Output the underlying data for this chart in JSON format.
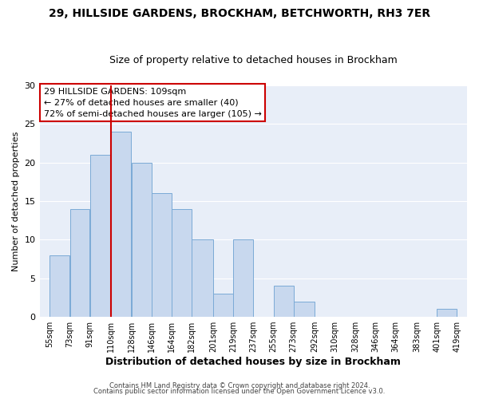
{
  "title": "29, HILLSIDE GARDENS, BROCKHAM, BETCHWORTH, RH3 7ER",
  "subtitle": "Size of property relative to detached houses in Brockham",
  "xlabel": "Distribution of detached houses by size in Brockham",
  "ylabel": "Number of detached properties",
  "bar_values": [
    8,
    14,
    21,
    24,
    20,
    16,
    14,
    10,
    3,
    10,
    0,
    4,
    2,
    0,
    0,
    0,
    1
  ],
  "bar_left_edges": [
    55,
    73,
    91,
    110,
    128,
    146,
    164,
    182,
    201,
    219,
    237,
    255,
    273,
    292,
    310,
    328,
    401
  ],
  "bar_widths": [
    18,
    18,
    19,
    18,
    18,
    18,
    18,
    19,
    18,
    18,
    18,
    18,
    19,
    18,
    18,
    18,
    18
  ],
  "tick_positions": [
    55,
    73,
    91,
    110,
    128,
    146,
    164,
    182,
    201,
    219,
    237,
    255,
    273,
    292,
    310,
    328,
    346,
    364,
    383,
    401,
    419
  ],
  "tick_labels": [
    "55sqm",
    "73sqm",
    "91sqm",
    "110sqm",
    "128sqm",
    "146sqm",
    "164sqm",
    "182sqm",
    "201sqm",
    "219sqm",
    "237sqm",
    "255sqm",
    "273sqm",
    "292sqm",
    "310sqm",
    "328sqm",
    "346sqm",
    "364sqm",
    "383sqm",
    "401sqm",
    "419sqm"
  ],
  "bar_color": "#c8d8ee",
  "bar_edge_color": "#7baad6",
  "vline_x": 110,
  "vline_color": "#cc0000",
  "ylim": [
    0,
    30
  ],
  "yticks": [
    0,
    5,
    10,
    15,
    20,
    25,
    30
  ],
  "annotation_title": "29 HILLSIDE GARDENS: 109sqm",
  "annotation_line1": "← 27% of detached houses are smaller (40)",
  "annotation_line2": "72% of semi-detached houses are larger (105) →",
  "annotation_box_color": "#ffffff",
  "annotation_box_edge": "#cc0000",
  "footer_line1": "Contains HM Land Registry data © Crown copyright and database right 2024.",
  "footer_line2": "Contains public sector information licensed under the Open Government Licence v3.0.",
  "background_color": "#ffffff",
  "plot_bg_color": "#e8eef8",
  "grid_color": "#ffffff",
  "title_fontsize": 10,
  "subtitle_fontsize": 9,
  "xlabel_fontsize": 9,
  "ylabel_fontsize": 8,
  "tick_fontsize": 7,
  "footer_fontsize": 6,
  "annot_fontsize": 8
}
